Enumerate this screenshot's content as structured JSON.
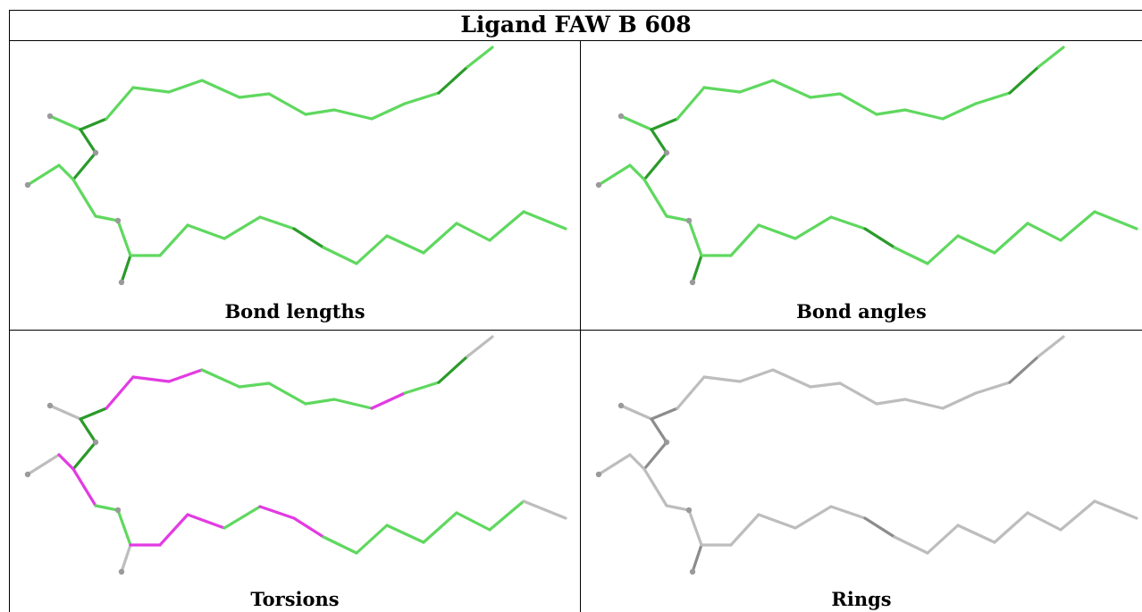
{
  "title": "Ligand FAW B 608",
  "panels": [
    {
      "label": "Bond lengths",
      "scheme": "bond_lengths"
    },
    {
      "label": "Bond angles",
      "scheme": "bond_angles"
    },
    {
      "label": "Torsions",
      "scheme": "torsions"
    },
    {
      "label": "Rings",
      "scheme": "rings"
    }
  ],
  "colors": {
    "green_light": "#5fd85f",
    "green_dark": "#2a9a2a",
    "magenta": "#e23be2",
    "grey_bond": "#bdbdbd",
    "grey_dark": "#8c8c8c",
    "atom_grey": "#9a9a9a"
  }
}
